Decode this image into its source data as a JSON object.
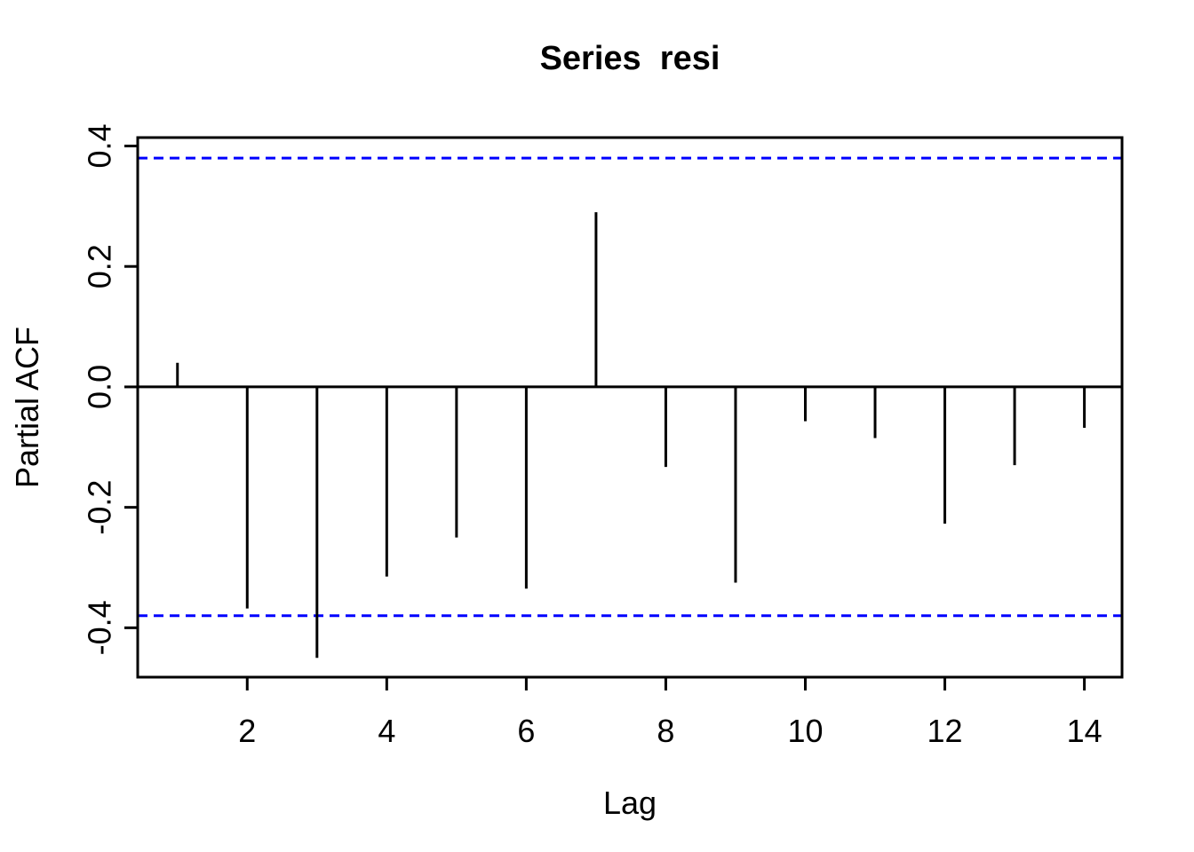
{
  "chart_data": {
    "type": "bar",
    "subtype": "pacf-stick-plot",
    "title": "Series  resi",
    "xlabel": "Lag",
    "ylabel": "Partial ACF",
    "x": [
      1,
      2,
      3,
      4,
      5,
      6,
      7,
      8,
      9,
      10,
      11,
      12,
      13,
      14
    ],
    "values": [
      0.04,
      -0.368,
      -0.45,
      -0.315,
      -0.25,
      -0.335,
      0.29,
      -0.133,
      -0.325,
      -0.057,
      -0.085,
      -0.227,
      -0.13,
      -0.068
    ],
    "series_name": "partial autocorrelation",
    "conf_level": 0.38,
    "conf_lines": [
      0.38,
      -0.38
    ],
    "conf_style": "dashed",
    "zero_line": 0.0,
    "x_ticks": [
      2,
      4,
      6,
      8,
      10,
      12,
      14
    ],
    "x_tick_labels": [
      "2",
      "4",
      "6",
      "8",
      "10",
      "12",
      "14"
    ],
    "y_ticks": [
      0.4,
      0.2,
      0.0,
      -0.2,
      -0.4
    ],
    "y_tick_labels": [
      "0.4",
      "0.2",
      "0.0",
      "-0.2",
      "-0.4"
    ],
    "xlim": [
      0.43,
      14.54
    ],
    "ylim": [
      -0.482,
      0.414
    ],
    "grid": false,
    "legend": null,
    "colors": {
      "spike": "#000000",
      "axis": "#000000",
      "conf_band": "#0000FF",
      "background": "#FFFFFF"
    }
  }
}
